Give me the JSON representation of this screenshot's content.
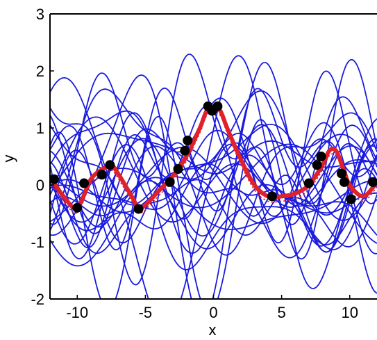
{
  "chart_data": {
    "type": "line",
    "title": "",
    "xlabel": "x",
    "ylabel": "y",
    "xlim": [
      -12,
      12
    ],
    "ylim": [
      -2,
      3
    ],
    "xticks": [
      -10,
      -5,
      0,
      5,
      10
    ],
    "xtick_labels": [
      "-10",
      "-5",
      "0",
      "5",
      "10"
    ],
    "yticks": [
      -2,
      -1,
      0,
      1,
      2,
      3
    ],
    "ytick_labels": [
      "-2",
      "-1",
      "0",
      "1",
      "2",
      "3"
    ],
    "grid": false,
    "colors": {
      "samples": "#1a1adf",
      "mean": "#e0202a",
      "observations": "#000000",
      "axes": "#000000"
    },
    "mean_curve": {
      "x": [
        -12,
        -11,
        -10,
        -9,
        -8,
        -7.5,
        -7,
        -6,
        -5.5,
        -5,
        -4,
        -3,
        -2,
        -1,
        -0.5,
        0,
        0.5,
        1,
        2,
        3,
        4,
        5,
        6,
        7,
        8,
        8.5,
        9,
        9.5,
        10,
        11,
        12
      ],
      "y": [
        0.15,
        -0.2,
        -0.4,
        0.1,
        0.3,
        0.35,
        0.2,
        -0.2,
        -0.4,
        -0.35,
        -0.1,
        0.15,
        0.5,
        1.0,
        1.3,
        1.35,
        1.3,
        1.0,
        0.45,
        0.0,
        -0.2,
        -0.2,
        -0.15,
        0.0,
        0.35,
        0.6,
        0.6,
        0.3,
        0.0,
        -0.2,
        0.05
      ]
    },
    "observations": {
      "x": [
        -11.7,
        -10,
        -9.5,
        -8.2,
        -7.6,
        -5.5,
        -3.2,
        -2.6,
        -2.1,
        -1.9,
        -0.4,
        -0.1,
        0.3,
        4.3,
        7,
        7.6,
        7.9,
        9.4,
        9.6,
        10.1,
        11.7
      ],
      "y": [
        0.1,
        -0.4,
        0.03,
        0.18,
        0.35,
        -0.42,
        0.05,
        0.28,
        0.6,
        0.78,
        1.38,
        1.3,
        1.38,
        -0.2,
        0.03,
        0.35,
        0.5,
        0.2,
        0.05,
        -0.25,
        0.05
      ]
    },
    "samples_count": 26
  }
}
